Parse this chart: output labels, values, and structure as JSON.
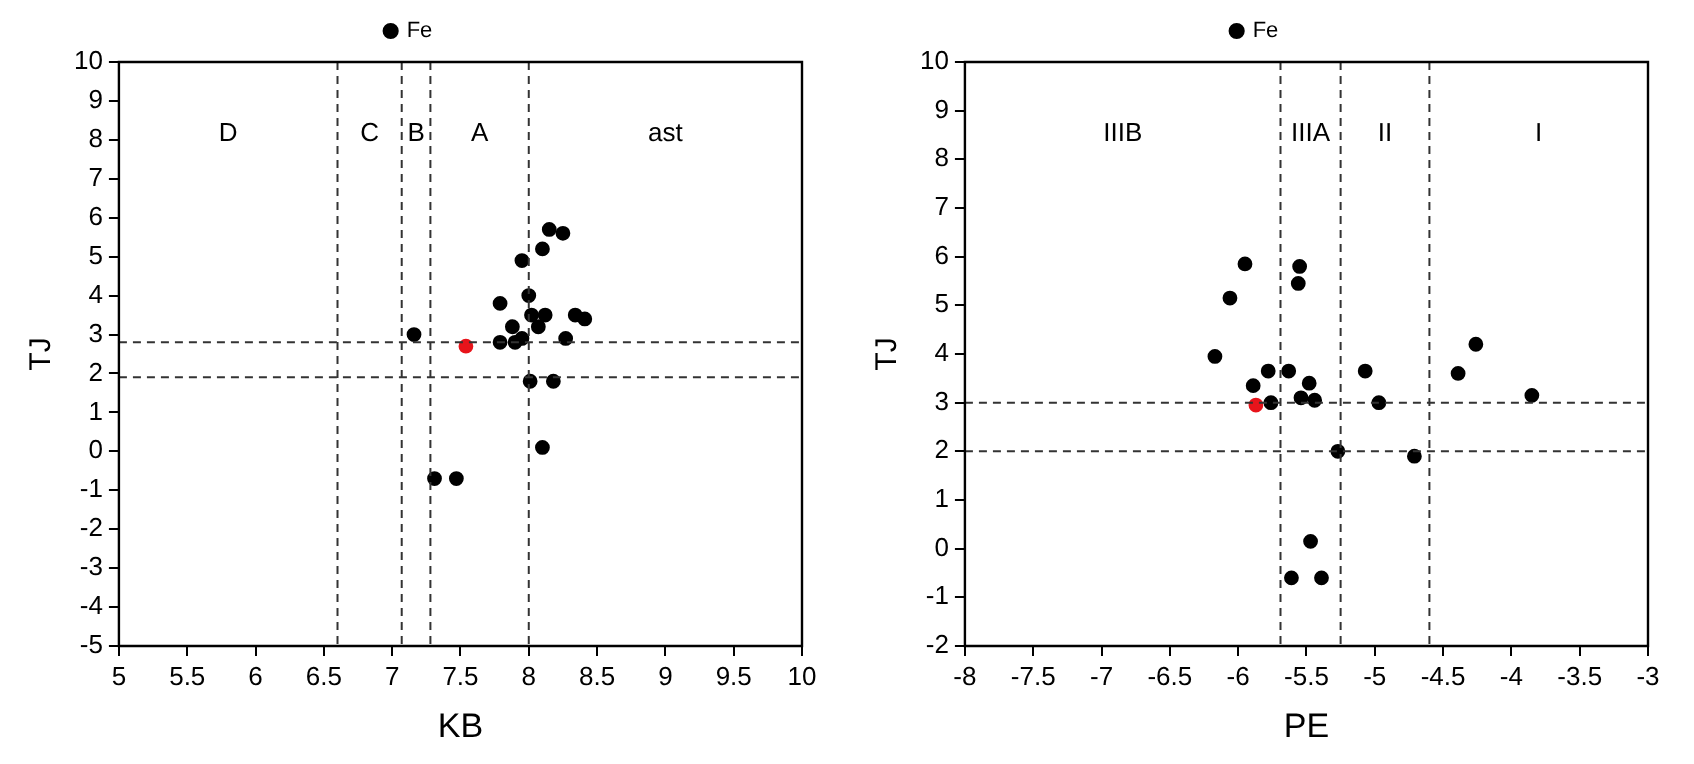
{
  "chart_data": [
    {
      "type": "scatter",
      "xlabel": "KB",
      "ylabel": "TJ",
      "xlim": [
        5,
        10
      ],
      "ylim": [
        -5,
        10
      ],
      "xticks": [
        5,
        5.5,
        6,
        6.5,
        7,
        7.5,
        8,
        8.5,
        9,
        9.5,
        10
      ],
      "yticks": [
        -5,
        -4,
        -3,
        -2,
        -1,
        0,
        1,
        2,
        3,
        4,
        5,
        6,
        7,
        8,
        9,
        10
      ],
      "grid": false,
      "legend": "top",
      "marker": "circle",
      "series": [
        {
          "name": "Fe",
          "color": "#000000",
          "x": [
            8.15,
            8.25,
            8.1,
            7.95,
            8.0,
            7.79,
            8.02,
            8.12,
            8.34,
            8.41,
            7.88,
            8.07,
            7.16,
            7.79,
            7.9,
            7.95,
            8.27,
            8.01,
            8.18,
            8.1,
            7.31,
            7.47
          ],
          "values": [
            5.7,
            5.6,
            5.2,
            4.9,
            4.0,
            3.8,
            3.5,
            3.5,
            3.5,
            3.4,
            3.2,
            3.2,
            3.0,
            2.8,
            2.8,
            2.9,
            2.9,
            1.8,
            1.8,
            0.1,
            -0.7,
            -0.7
          ]
        },
        {
          "color": "#e8141b",
          "x": [
            7.54
          ],
          "values": [
            2.7
          ]
        }
      ],
      "ref_lines": [
        {
          "axis": "x",
          "value": 6.6,
          "line_style": "dashed"
        },
        {
          "axis": "x",
          "value": 7.07,
          "line_style": "dashed"
        },
        {
          "axis": "x",
          "value": 7.28,
          "line_style": "dashed"
        },
        {
          "axis": "x",
          "value": 8.0,
          "line_style": "dashed"
        },
        {
          "axis": "y",
          "value": 2.8,
          "line_style": "dashed"
        },
        {
          "axis": "y",
          "value": 1.9,
          "line_style": "dashed"
        }
      ],
      "annotations": [
        "D",
        "C",
        "B",
        "A",
        "ast"
      ]
    },
    {
      "type": "scatter",
      "xlabel": "PE",
      "ylabel": "TJ",
      "xlim": [
        -8,
        -3
      ],
      "ylim": [
        -2,
        10
      ],
      "xticks": [
        -8,
        -7.5,
        -7,
        -6.5,
        -6,
        -5.5,
        -5,
        -4.5,
        -4,
        -3.5,
        -3
      ],
      "yticks": [
        -2,
        -1,
        0,
        1,
        2,
        3,
        4,
        5,
        6,
        7,
        8,
        9,
        10
      ],
      "grid": false,
      "legend": "top",
      "marker": "circle",
      "series": [
        {
          "name": "Fe",
          "color": "#000000",
          "x": [
            -5.95,
            -5.55,
            -5.56,
            -6.06,
            -6.17,
            -4.26,
            -4.39,
            -3.85,
            -5.07,
            -5.78,
            -5.63,
            -5.89,
            -5.48,
            -5.76,
            -5.54,
            -5.44,
            -4.97,
            -5.27,
            -4.71,
            -5.47,
            -5.61,
            -5.39
          ],
          "values": [
            5.85,
            5.8,
            5.45,
            5.15,
            3.95,
            4.2,
            3.6,
            3.15,
            3.65,
            3.65,
            3.65,
            3.35,
            3.4,
            3.0,
            3.1,
            3.05,
            3.0,
            2.0,
            1.9,
            0.15,
            -0.6,
            -0.6
          ]
        },
        {
          "color": "#e8141b",
          "x": [
            -5.87
          ],
          "values": [
            2.95
          ]
        }
      ],
      "ref_lines": [
        {
          "axis": "x",
          "value": -5.69,
          "line_style": "dashed"
        },
        {
          "axis": "x",
          "value": -5.25,
          "line_style": "dashed"
        },
        {
          "axis": "x",
          "value": -4.6,
          "line_style": "dashed"
        },
        {
          "axis": "y",
          "value": 3,
          "line_style": "dashed"
        },
        {
          "axis": "y",
          "value": 2,
          "line_style": "dashed"
        }
      ],
      "annotations": [
        "IIIB",
        "IIIA",
        "II",
        "I"
      ]
    }
  ]
}
